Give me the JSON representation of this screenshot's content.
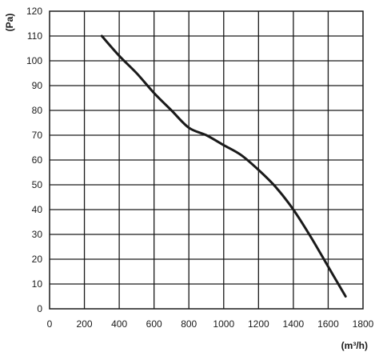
{
  "chart_data": {
    "type": "line",
    "title": "",
    "xlabel": "(m³/h)",
    "ylabel": "(Pa)",
    "xlim": [
      0,
      1800
    ],
    "ylim": [
      0,
      120
    ],
    "x_ticks": [
      "0",
      "200",
      "400",
      "600",
      "800",
      "1000",
      "1200",
      "1400",
      "1600",
      "1800"
    ],
    "y_ticks": [
      "0",
      "10",
      "20",
      "30",
      "40",
      "50",
      "60",
      "70",
      "80",
      "90",
      "100",
      "110",
      "120"
    ],
    "grid": true,
    "line_color": "#1a1a1a",
    "series": [
      {
        "x": [
          300,
          400,
          500,
          600,
          700,
          800,
          900,
          1000,
          1100,
          1200,
          1300,
          1400,
          1500,
          1600,
          1700
        ],
        "y": [
          110,
          102,
          95,
          87,
          80,
          73,
          70,
          66,
          62,
          56,
          49,
          40,
          29,
          17,
          5
        ]
      }
    ]
  }
}
